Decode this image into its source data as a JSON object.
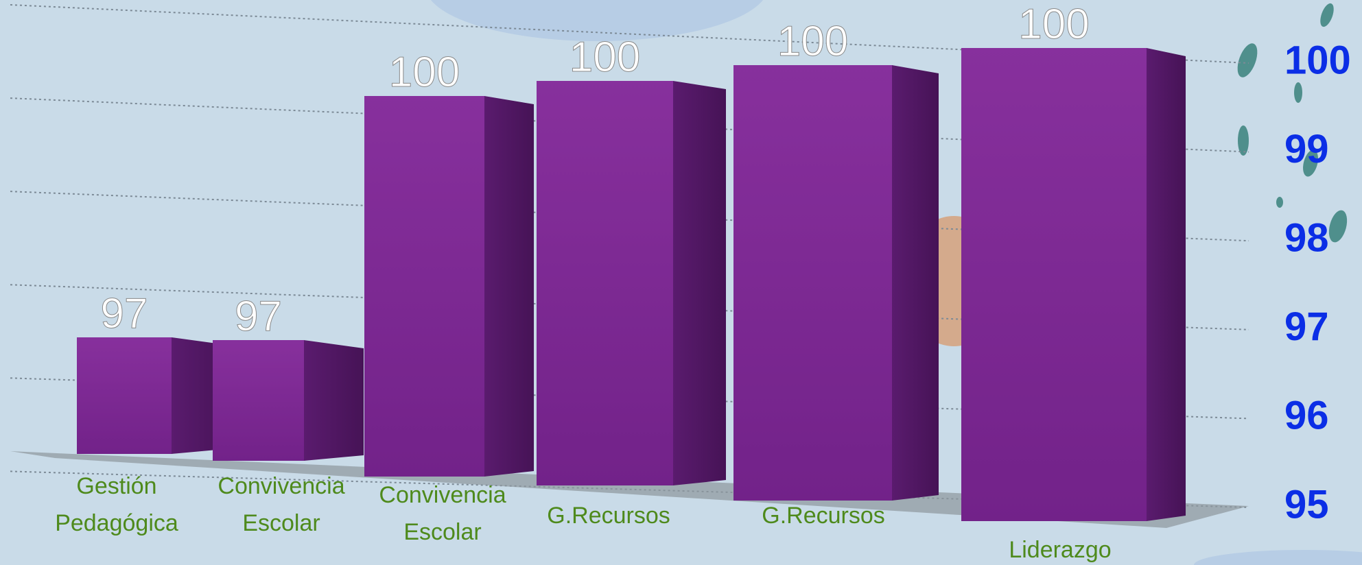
{
  "chart_data": {
    "type": "bar3d",
    "categories": [
      "Gestión Pedagógica",
      "Convivencia Escolar",
      "Convivencia Escolar",
      "G.Recursos",
      "G.Recursos",
      "Liderazgo"
    ],
    "values": [
      97,
      97,
      100,
      100,
      100,
      100
    ],
    "color": "#7e2a94",
    "ylim": [
      95,
      100
    ],
    "yticks": [
      95,
      96,
      97,
      98,
      99,
      100
    ],
    "grid": true
  }
}
